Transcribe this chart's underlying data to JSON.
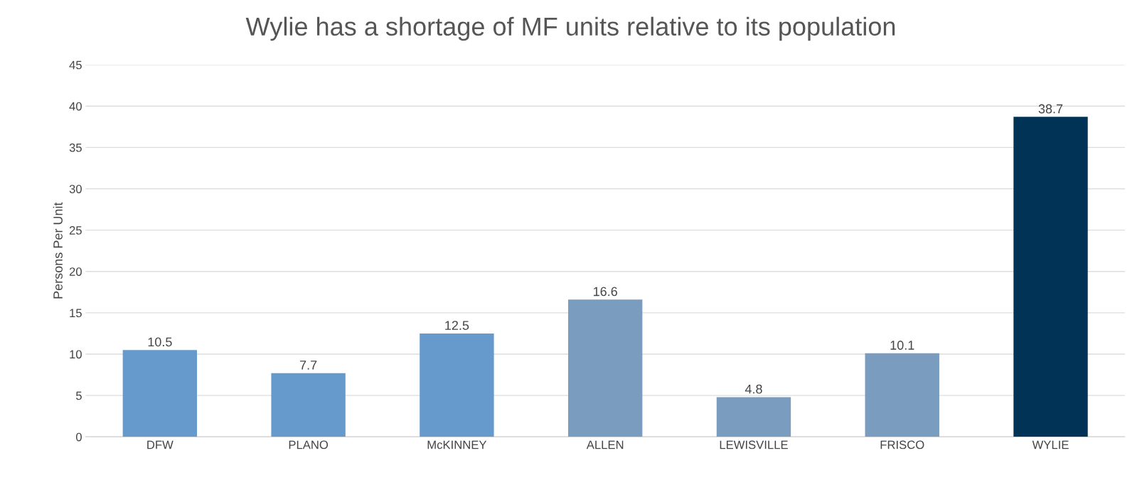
{
  "chart_data": {
    "type": "bar",
    "title": "Wylie has a shortage of MF units relative to its population",
    "ylabel": "Persons Per Unit",
    "categories": [
      "DFW",
      "PLANO",
      "McKINNEY",
      "ALLEN",
      "LEWISVILLE",
      "FRISCO",
      "WYLIE"
    ],
    "values": [
      10.5,
      7.7,
      12.5,
      16.6,
      4.8,
      10.1,
      38.7
    ],
    "colors": [
      "#6699cc",
      "#6699cc",
      "#6699cc",
      "#7a9cbf",
      "#7a9cbf",
      "#7a9cbf",
      "#003356"
    ],
    "ylim": [
      0,
      45
    ],
    "yticks": [
      0,
      5,
      10,
      15,
      20,
      25,
      30,
      35,
      40,
      45
    ],
    "grid": "y",
    "data_labels": true
  }
}
